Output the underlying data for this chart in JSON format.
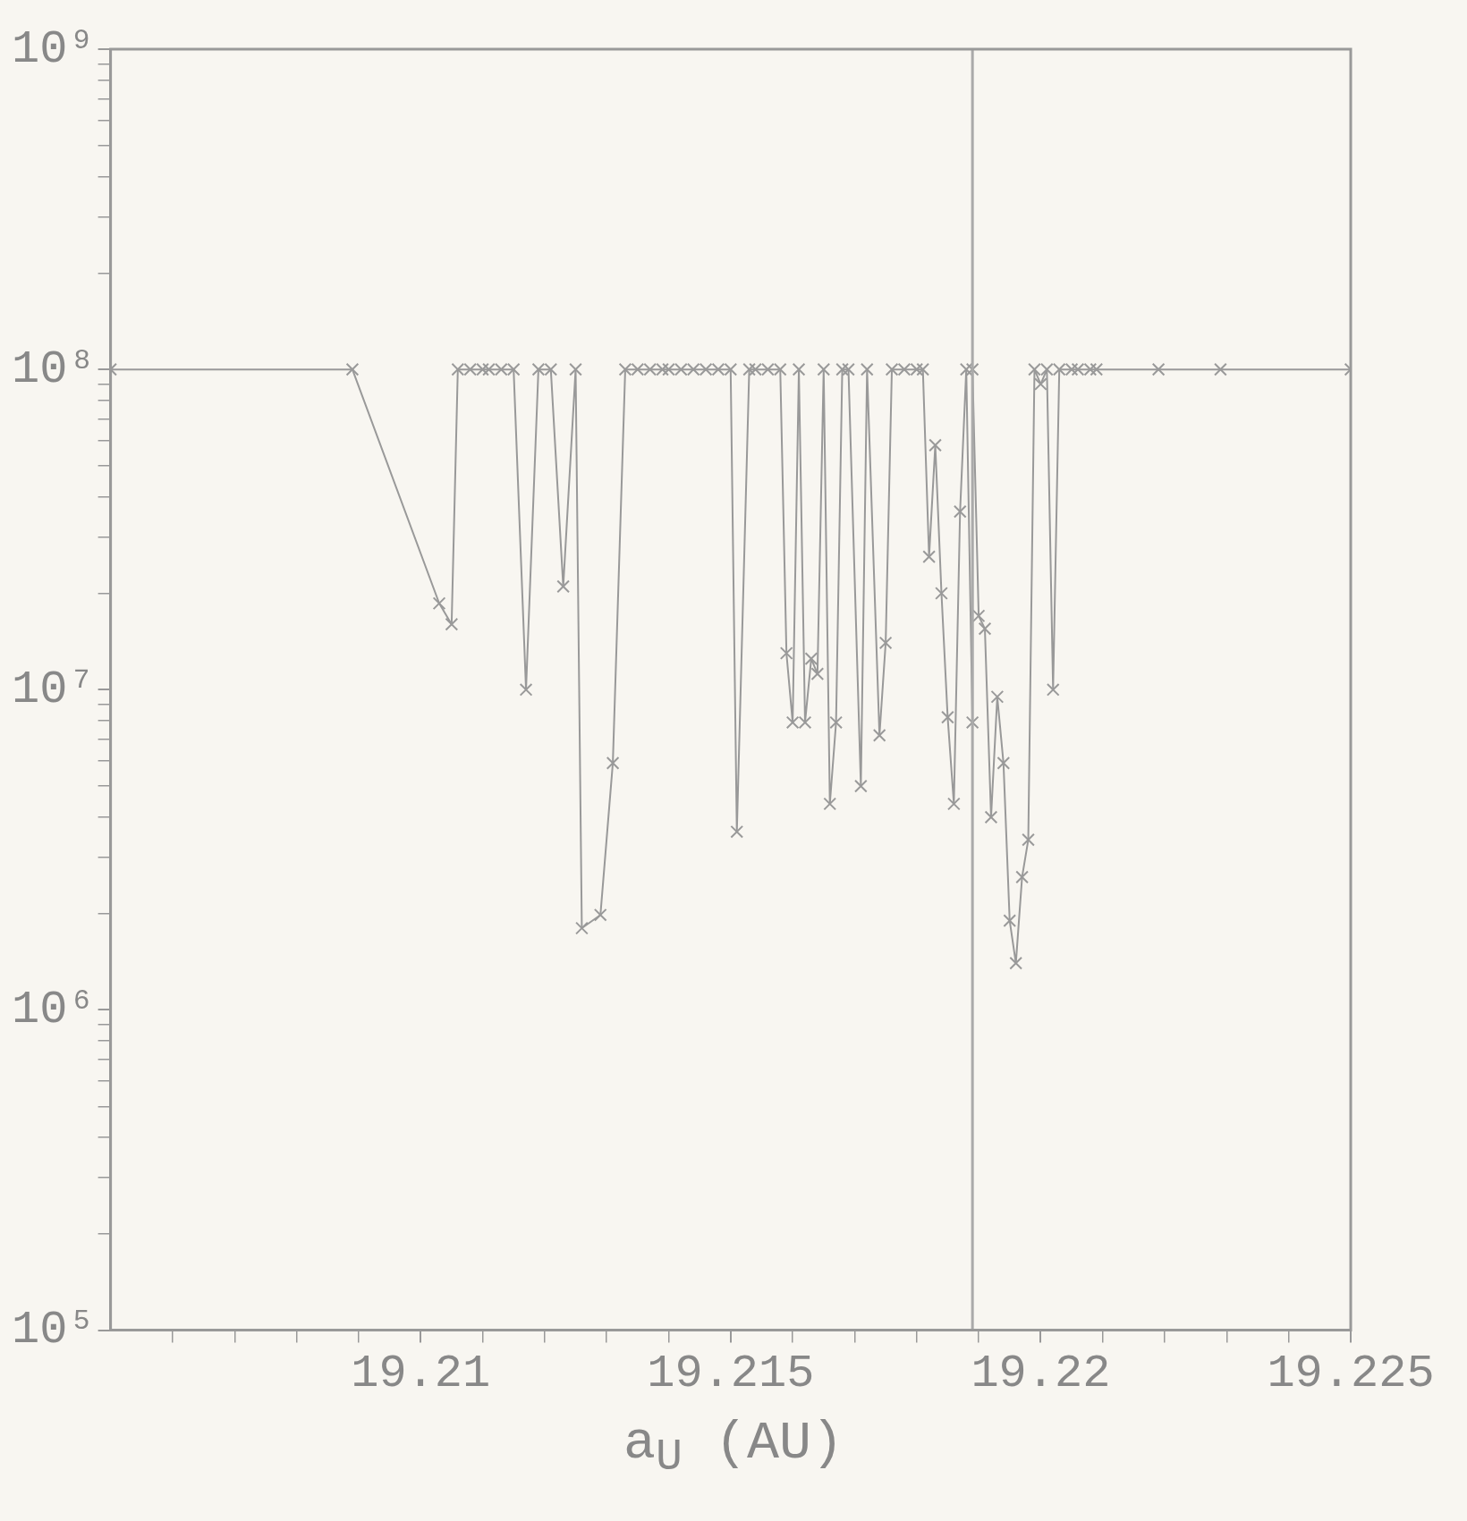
{
  "chart_data": {
    "type": "line",
    "xlabel": "a$_{U}$ (AU)",
    "log": "y",
    "marker": "cross",
    "line_style": "solid",
    "grid": false,
    "legend": false,
    "xlim": [
      19.205,
      19.225
    ],
    "ylim": [
      100000,
      1000000000
    ],
    "xticks": [
      {
        "value": 19.206,
        "label": null
      },
      {
        "value": 19.207,
        "label": null
      },
      {
        "value": 19.208,
        "label": null
      },
      {
        "value": 19.209,
        "label": null
      },
      19.21,
      {
        "value": 19.211,
        "label": null
      },
      {
        "value": 19.212,
        "label": null
      },
      {
        "value": 19.213,
        "label": null
      },
      {
        "value": 19.214,
        "label": null
      },
      19.215,
      {
        "value": 19.216,
        "label": null
      },
      {
        "value": 19.217,
        "label": null
      },
      {
        "value": 19.218,
        "label": null
      },
      {
        "value": 19.219,
        "label": null
      },
      19.22,
      {
        "value": 19.221,
        "label": null
      },
      {
        "value": 19.222,
        "label": null
      },
      {
        "value": 19.223,
        "label": null
      },
      {
        "value": 19.224,
        "label": null
      },
      19.225
    ],
    "yticks": [
      {
        "value": 100000,
        "label": "10⁵"
      },
      {
        "value": 200000,
        "label": null
      },
      {
        "value": 300000,
        "label": null
      },
      {
        "value": 400000,
        "label": null
      },
      {
        "value": 500000,
        "label": null
      },
      {
        "value": 600000,
        "label": null
      },
      {
        "value": 700000,
        "label": null
      },
      {
        "value": 800000,
        "label": null
      },
      {
        "value": 900000,
        "label": null
      },
      {
        "value": 1000000,
        "label": "10⁶"
      },
      {
        "value": 2000000,
        "label": null
      },
      {
        "value": 3000000,
        "label": null
      },
      {
        "value": 4000000,
        "label": null
      },
      {
        "value": 5000000,
        "label": null
      },
      {
        "value": 6000000,
        "label": null
      },
      {
        "value": 7000000,
        "label": null
      },
      {
        "value": 8000000,
        "label": null
      },
      {
        "value": 9000000,
        "label": null
      },
      {
        "value": 10000000,
        "label": "10⁷"
      },
      {
        "value": 20000000,
        "label": null
      },
      {
        "value": 30000000,
        "label": null
      },
      {
        "value": 40000000,
        "label": null
      },
      {
        "value": 50000000,
        "label": null
      },
      {
        "value": 60000000,
        "label": null
      },
      {
        "value": 70000000,
        "label": null
      },
      {
        "value": 80000000,
        "label": null
      },
      {
        "value": 90000000,
        "label": null
      },
      {
        "value": 100000000,
        "label": "10⁸"
      },
      {
        "value": 200000000,
        "label": null
      },
      {
        "value": 300000000,
        "label": null
      },
      {
        "value": 400000000,
        "label": null
      },
      {
        "value": 500000000,
        "label": null
      },
      {
        "value": 600000000,
        "label": null
      },
      {
        "value": 700000000,
        "label": null
      },
      {
        "value": 800000000,
        "label": null
      },
      {
        "value": 900000000,
        "label": null
      },
      {
        "value": 1000000000,
        "label": "10⁹"
      }
    ],
    "ref_lines": [
      {
        "axis": "x",
        "value": 19.2189,
        "color": "#aaaaaa"
      }
    ],
    "series": [
      {
        "color": "#999999",
        "x": [
          19.205,
          19.2089,
          19.2103,
          19.2105,
          19.2106,
          19.2108,
          19.211,
          19.2111,
          19.2113,
          19.2115,
          19.2117,
          19.2119,
          19.2121,
          19.2123,
          19.2125,
          19.2126,
          19.2129,
          19.2131,
          19.2133,
          19.2135,
          19.2137,
          19.2139,
          19.214,
          19.2142,
          19.2144,
          19.2146,
          19.2148,
          19.215,
          19.2151,
          19.2153,
          19.2154,
          19.2156,
          19.2158,
          19.2159,
          19.216,
          19.2161,
          19.2162,
          19.2163,
          19.2164,
          19.2165,
          19.2166,
          19.2167,
          19.2168,
          19.2169,
          19.2171,
          19.2172,
          19.2174,
          19.2175,
          19.2176,
          19.2178,
          19.218,
          19.2181,
          19.2182,
          19.2183,
          19.2184,
          19.2185,
          19.2186,
          19.2187,
          19.2188,
          19.2189,
          19.2189,
          19.219,
          19.2191,
          19.2192,
          19.2193,
          19.2194,
          19.2195,
          19.2196,
          19.2197,
          19.2198,
          19.2199,
          19.22,
          19.2201,
          19.2202,
          19.2203,
          19.2205,
          19.2206,
          19.2208,
          19.2209,
          19.2219,
          19.2229,
          19.225
        ],
        "values": [
          100000000,
          100000000,
          18600000,
          16000000,
          100000000,
          100000000,
          100000000,
          100000000,
          100000000,
          100000000,
          10000000,
          100000000,
          100000000,
          21000000,
          100000000,
          1800000,
          1980000,
          5900000,
          100000000,
          100000000,
          100000000,
          100000000,
          100000000,
          100000000,
          100000000,
          100000000,
          100000000,
          100000000,
          3600000,
          100000000,
          100000000,
          100000000,
          100000000,
          13000000,
          7900000,
          100000000,
          7900000,
          12500000,
          11200000,
          100000000,
          4400000,
          7900000,
          100000000,
          100000000,
          5000000,
          100000000,
          7200000,
          14000000,
          100000000,
          100000000,
          100000000,
          100000000,
          26000000,
          58000000,
          20000000,
          8200000,
          4400000,
          36000000,
          100000000,
          7900000,
          100000000,
          17000000,
          15500000,
          4000000,
          9500000,
          5900000,
          1900000,
          1400000,
          2600000,
          3400000,
          100000000,
          90000000,
          100000000,
          10000000,
          100000000,
          100000000,
          100000000,
          100000000,
          100000000,
          100000000,
          100000000,
          100000000
        ]
      }
    ]
  }
}
